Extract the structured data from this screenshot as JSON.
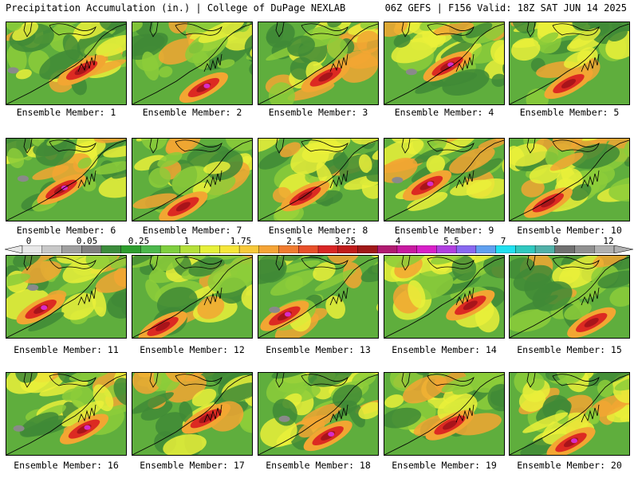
{
  "header": {
    "left": "Precipitation Accumulation (in.) | College of DuPage NEXLAB",
    "right": "06Z GEFS | F156 Valid: 18Z SAT JUN 14 2025"
  },
  "panels": [
    {
      "caption": "Ensemble Member: 1"
    },
    {
      "caption": "Ensemble Member: 2"
    },
    {
      "caption": "Ensemble Member: 3"
    },
    {
      "caption": "Ensemble Member: 4"
    },
    {
      "caption": "Ensemble Member: 5"
    },
    {
      "caption": "Ensemble Member: 6"
    },
    {
      "caption": "Ensemble Member: 7"
    },
    {
      "caption": "Ensemble Member: 8"
    },
    {
      "caption": "Ensemble Member: 9"
    },
    {
      "caption": "Ensemble Member: 10"
    },
    {
      "caption": "Ensemble Member: 11"
    },
    {
      "caption": "Ensemble Member: 12"
    },
    {
      "caption": "Ensemble Member: 13"
    },
    {
      "caption": "Ensemble Member: 14"
    },
    {
      "caption": "Ensemble Member: 15"
    },
    {
      "caption": "Ensemble Member: 16"
    },
    {
      "caption": "Ensemble Member: 17"
    },
    {
      "caption": "Ensemble Member: 18"
    },
    {
      "caption": "Ensemble Member: 19"
    },
    {
      "caption": "Ensemble Member: 20"
    }
  ],
  "colorbar": {
    "labels": [
      "0",
      "0.05",
      "0.25",
      "1",
      "1.75",
      "2.5",
      "3.25",
      "4",
      "5.5",
      "7",
      "9",
      "12"
    ],
    "colors": [
      "#e8e8e8",
      "#c8c8c8",
      "#a0a0a0",
      "#808080",
      "#3c8c3c",
      "#2e9e2e",
      "#4cb84c",
      "#7fcf3f",
      "#b5e03a",
      "#e6f03a",
      "#f5e63a",
      "#f7c93a",
      "#f5a436",
      "#f07c30",
      "#e8502a",
      "#d92626",
      "#c01c1c",
      "#a01818",
      "#b01a70",
      "#c81aa0",
      "#d820c8",
      "#b040e0",
      "#8868f0",
      "#60a0f0",
      "#20e0f0",
      "#30c8c0",
      "#50b0a8",
      "#707070",
      "#909090",
      "#b0b0b0"
    ],
    "field_colors": {
      "green_dark": "#3f8a36",
      "green": "#5fae3d",
      "green_light": "#8ccc3a",
      "yellow": "#eaf03a",
      "orange": "#f2a632",
      "red": "#dc2a22",
      "darkred": "#a8141a",
      "magenta": "#d82cc8",
      "violet": "#b060ff",
      "gray": "#8a8a8a",
      "cyan": "#30e6f0"
    }
  }
}
